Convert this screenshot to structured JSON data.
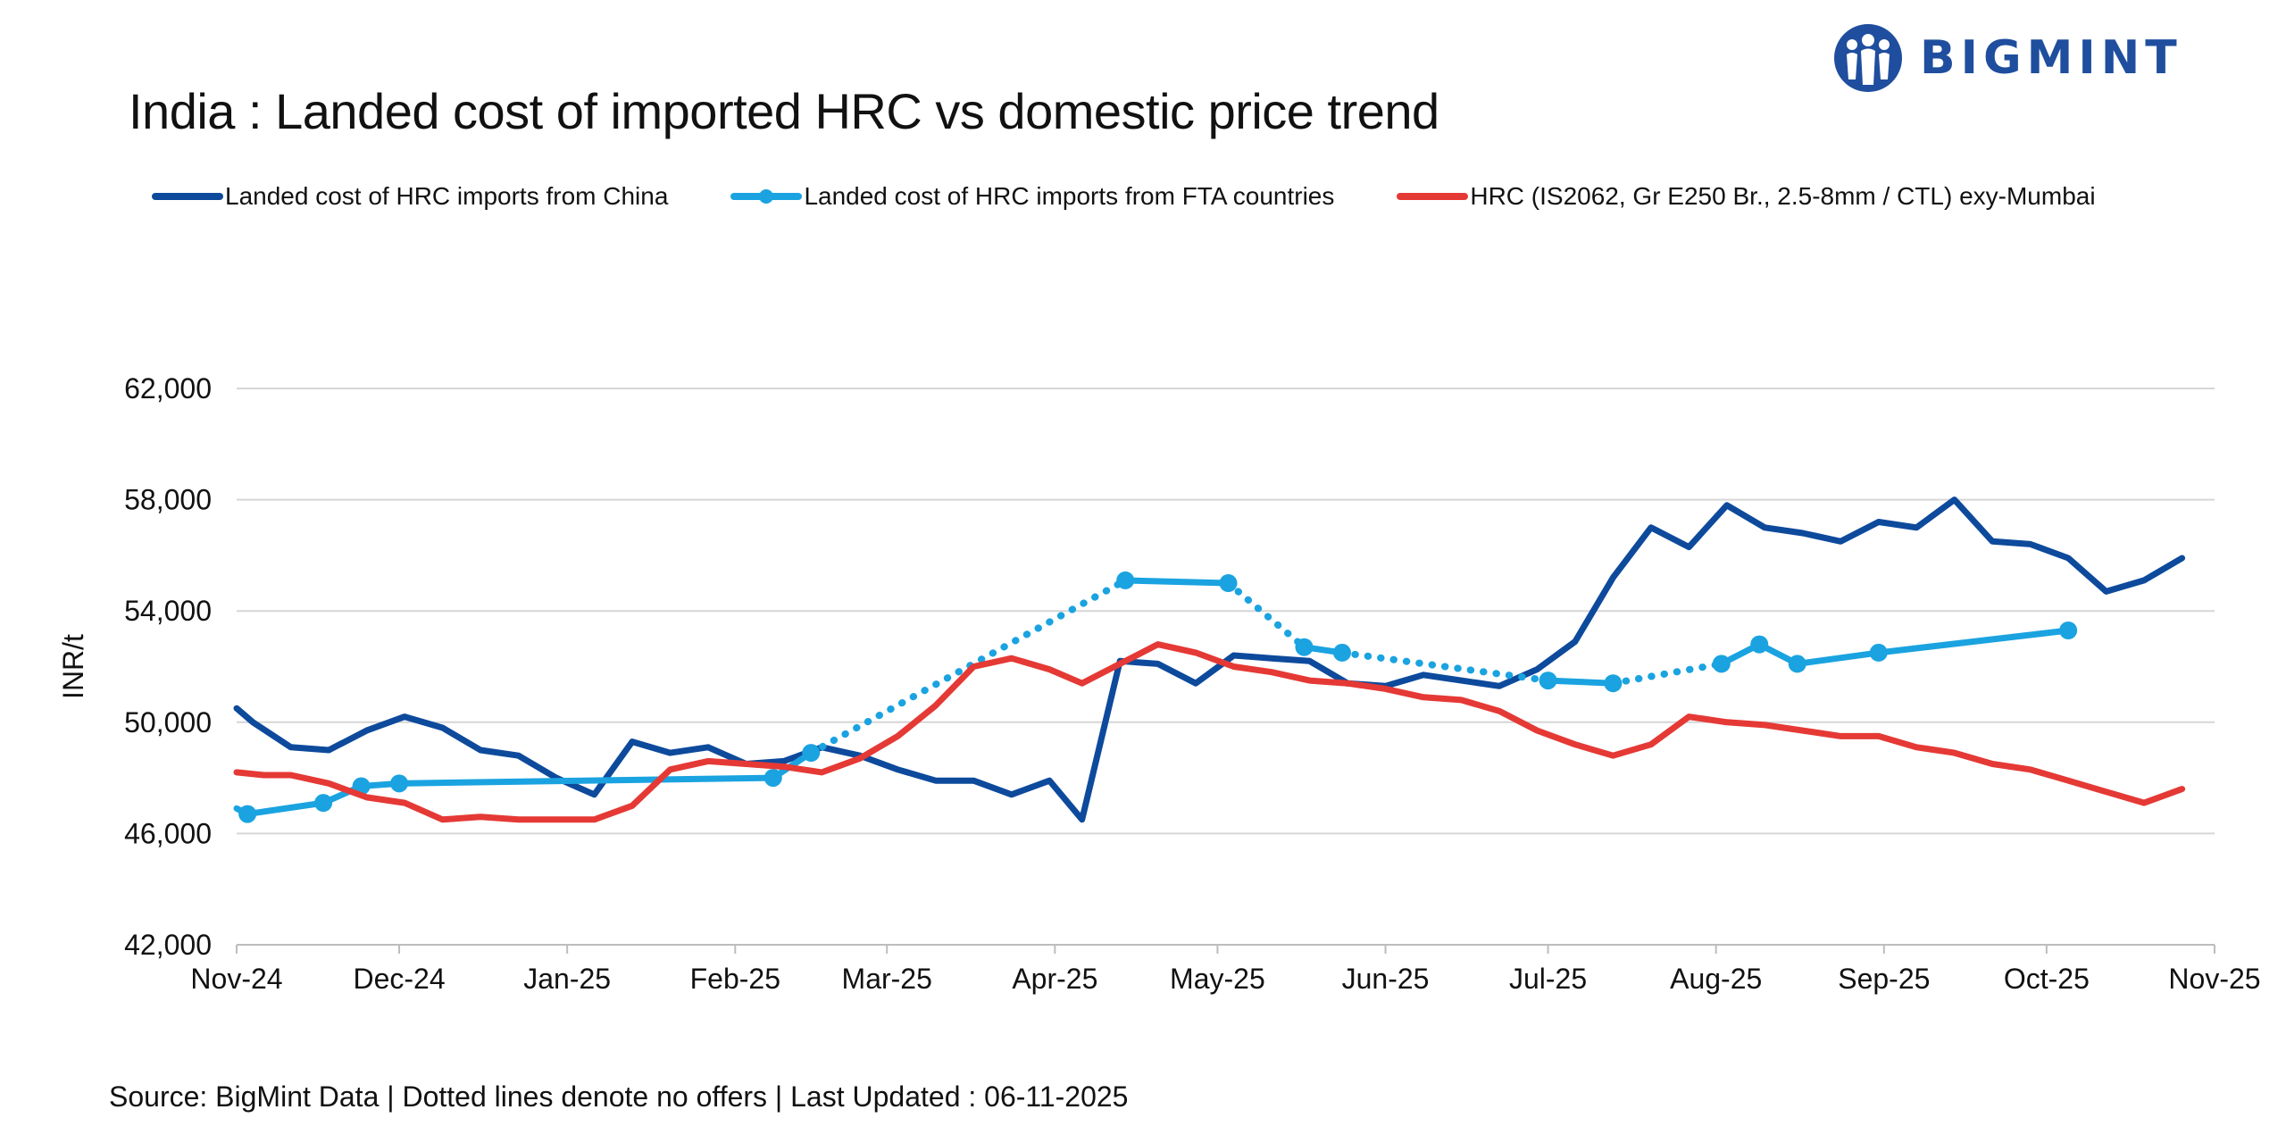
{
  "header": {
    "title": "India : Landed cost of imported HRC vs domestic price trend",
    "logo_text": "BIGMINT"
  },
  "footer": {
    "source": "Source: BigMint Data | Dotted lines denote no offers | Last Updated : 06-11-2025"
  },
  "colors": {
    "china": "#0d4a9c",
    "fta": "#1aa3e0",
    "domestic": "#e53935",
    "grid": "#d6d6d6",
    "brand": "#1f4e9e"
  },
  "chart_data": {
    "type": "line",
    "title": "India : Landed cost of imported HRC vs domestic price trend",
    "ylabel": "INR/t",
    "xlabel": "",
    "ylim": [
      42000,
      62000
    ],
    "yticks": [
      42000,
      46000,
      50000,
      54000,
      58000,
      62000
    ],
    "ytick_labels": [
      "42,000",
      "46,000",
      "50,000",
      "54,000",
      "58,000",
      "62,000"
    ],
    "xlim": [
      "2024-11-01",
      "2025-11-01"
    ],
    "xticks": [
      "2024-11-01",
      "2024-12-01",
      "2025-01-01",
      "2025-02-01",
      "2025-03-01",
      "2025-04-01",
      "2025-05-01",
      "2025-06-01",
      "2025-07-01",
      "2025-08-01",
      "2025-09-01",
      "2025-10-01",
      "2025-11-01"
    ],
    "xtick_labels": [
      "Nov-24",
      "Dec-24",
      "Jan-25",
      "Feb-25",
      "Mar-25",
      "Apr-25",
      "May-25",
      "Jun-25",
      "Jul-25",
      "Aug-25",
      "Sep-25",
      "Oct-25",
      "Nov-25"
    ],
    "grid": true,
    "legend_position": "top",
    "note": "Dotted lines denote no offers",
    "series": [
      {
        "name": "Landed cost of HRC imports from China",
        "color": "#0d4a9c",
        "marker": false,
        "points": [
          [
            "2024-11-01",
            50500
          ],
          [
            "2024-11-04",
            50000
          ],
          [
            "2024-11-11",
            49100
          ],
          [
            "2024-11-18",
            49000
          ],
          [
            "2024-11-25",
            49700
          ],
          [
            "2024-12-02",
            50200
          ],
          [
            "2024-12-09",
            49800
          ],
          [
            "2024-12-16",
            49000
          ],
          [
            "2024-12-23",
            48800
          ],
          [
            "2024-12-30",
            48000
          ],
          [
            "2025-01-06",
            47400
          ],
          [
            "2025-01-13",
            49300
          ],
          [
            "2025-01-20",
            48900
          ],
          [
            "2025-01-27",
            49100
          ],
          [
            "2025-02-03",
            48500
          ],
          [
            "2025-02-10",
            48600
          ],
          [
            "2025-02-17",
            49100
          ],
          [
            "2025-02-24",
            48800
          ],
          [
            "2025-03-03",
            48300
          ],
          [
            "2025-03-10",
            47900
          ],
          [
            "2025-03-17",
            47900
          ],
          [
            "2025-03-24",
            47400
          ],
          [
            "2025-03-31",
            47900
          ],
          [
            "2025-04-06",
            46500
          ],
          [
            "2025-04-13",
            52200
          ],
          [
            "2025-04-20",
            52100
          ],
          [
            "2025-04-27",
            51400
          ],
          [
            "2025-05-04",
            52400
          ],
          [
            "2025-05-11",
            52300
          ],
          [
            "2025-05-18",
            52200
          ],
          [
            "2025-05-25",
            51400
          ],
          [
            "2025-06-01",
            51300
          ],
          [
            "2025-06-08",
            51700
          ],
          [
            "2025-06-15",
            51500
          ],
          [
            "2025-06-22",
            51300
          ],
          [
            "2025-06-29",
            51900
          ],
          [
            "2025-07-06",
            52900
          ],
          [
            "2025-07-13",
            55200
          ],
          [
            "2025-07-20",
            57000
          ],
          [
            "2025-07-27",
            56300
          ],
          [
            "2025-08-03",
            57800
          ],
          [
            "2025-08-10",
            57000
          ],
          [
            "2025-08-17",
            56800
          ],
          [
            "2025-08-24",
            56500
          ],
          [
            "2025-08-31",
            57200
          ],
          [
            "2025-09-07",
            57000
          ],
          [
            "2025-09-14",
            58000
          ],
          [
            "2025-09-21",
            56500
          ],
          [
            "2025-09-28",
            56400
          ],
          [
            "2025-10-05",
            55900
          ],
          [
            "2025-10-12",
            54700
          ],
          [
            "2025-10-19",
            55100
          ],
          [
            "2025-10-26",
            55900
          ]
        ]
      },
      {
        "name": "Landed cost of HRC imports from FTA countries",
        "color": "#1aa3e0",
        "marker": true,
        "points": [
          [
            "2024-11-01",
            46900,
            "solid"
          ],
          [
            "2024-11-03",
            46700,
            "solid"
          ],
          [
            "2024-11-17",
            47100,
            "solid"
          ],
          [
            "2024-11-24",
            47700,
            "solid"
          ],
          [
            "2024-12-01",
            47800,
            "solid"
          ],
          [
            "2025-02-08",
            48000,
            "solid"
          ],
          [
            "2025-02-15",
            48900,
            "solid"
          ],
          [
            "2025-04-14",
            55100,
            "dotted"
          ],
          [
            "2025-05-03",
            55000,
            "solid"
          ],
          [
            "2025-05-17",
            52700,
            "dotted"
          ],
          [
            "2025-05-24",
            52500,
            "solid"
          ],
          [
            "2025-07-01",
            51500,
            "dotted"
          ],
          [
            "2025-07-13",
            51400,
            "solid"
          ],
          [
            "2025-08-02",
            52100,
            "dotted"
          ],
          [
            "2025-08-09",
            52800,
            "solid"
          ],
          [
            "2025-08-16",
            52100,
            "solid"
          ],
          [
            "2025-08-31",
            52500,
            "solid"
          ],
          [
            "2025-10-05",
            53300,
            "solid"
          ]
        ]
      },
      {
        "name": "HRC (IS2062, Gr E250 Br., 2.5-8mm / CTL) exy-Mumbai",
        "color": "#e53935",
        "marker": false,
        "points": [
          [
            "2024-11-01",
            48200
          ],
          [
            "2024-11-06",
            48100
          ],
          [
            "2024-11-11",
            48100
          ],
          [
            "2024-11-18",
            47800
          ],
          [
            "2024-11-25",
            47300
          ],
          [
            "2024-12-02",
            47100
          ],
          [
            "2024-12-09",
            46500
          ],
          [
            "2024-12-16",
            46600
          ],
          [
            "2024-12-23",
            46500
          ],
          [
            "2024-12-30",
            46500
          ],
          [
            "2025-01-06",
            46500
          ],
          [
            "2025-01-13",
            47000
          ],
          [
            "2025-01-20",
            48300
          ],
          [
            "2025-01-27",
            48600
          ],
          [
            "2025-02-03",
            48500
          ],
          [
            "2025-02-10",
            48400
          ],
          [
            "2025-02-17",
            48200
          ],
          [
            "2025-02-24",
            48700
          ],
          [
            "2025-03-03",
            49500
          ],
          [
            "2025-03-10",
            50600
          ],
          [
            "2025-03-17",
            52000
          ],
          [
            "2025-03-24",
            52300
          ],
          [
            "2025-03-31",
            51900
          ],
          [
            "2025-04-06",
            51400
          ],
          [
            "2025-04-13",
            52100
          ],
          [
            "2025-04-20",
            52800
          ],
          [
            "2025-04-27",
            52500
          ],
          [
            "2025-05-04",
            52000
          ],
          [
            "2025-05-11",
            51800
          ],
          [
            "2025-05-18",
            51500
          ],
          [
            "2025-05-25",
            51400
          ],
          [
            "2025-06-01",
            51200
          ],
          [
            "2025-06-08",
            50900
          ],
          [
            "2025-06-15",
            50800
          ],
          [
            "2025-06-22",
            50400
          ],
          [
            "2025-06-29",
            49700
          ],
          [
            "2025-07-06",
            49200
          ],
          [
            "2025-07-13",
            48800
          ],
          [
            "2025-07-20",
            49200
          ],
          [
            "2025-07-27",
            50200
          ],
          [
            "2025-08-03",
            50000
          ],
          [
            "2025-08-10",
            49900
          ],
          [
            "2025-08-17",
            49700
          ],
          [
            "2025-08-24",
            49500
          ],
          [
            "2025-08-31",
            49500
          ],
          [
            "2025-09-07",
            49100
          ],
          [
            "2025-09-14",
            48900
          ],
          [
            "2025-09-21",
            48500
          ],
          [
            "2025-09-28",
            48300
          ],
          [
            "2025-10-05",
            47900
          ],
          [
            "2025-10-12",
            47500
          ],
          [
            "2025-10-19",
            47100
          ],
          [
            "2025-10-26",
            47600
          ]
        ]
      }
    ]
  }
}
